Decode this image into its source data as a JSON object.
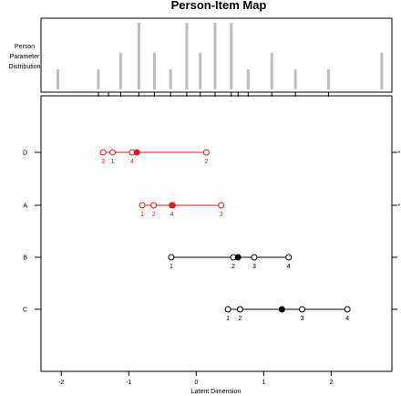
{
  "chart_data": {
    "type": "scatter",
    "title": "Person-Item Map",
    "xlabel": "Latent Dimension",
    "top_panel_label": [
      "Person",
      "Parameter",
      "Distribution"
    ],
    "xlim": [
      -2.3,
      2.9
    ],
    "x_ticks": [
      -2,
      -1,
      0,
      1,
      2
    ],
    "person_distribution": {
      "x": [
        -2.05,
        -1.45,
        -1.12,
        -0.85,
        -0.62,
        -0.38,
        -0.14,
        0.06,
        0.28,
        0.52,
        0.77,
        1.12,
        1.47,
        1.96,
        2.75
      ],
      "height": [
        0.3,
        0.3,
        0.55,
        1.0,
        0.55,
        0.3,
        1.0,
        0.55,
        1.0,
        1.0,
        0.3,
        0.55,
        0.3,
        0.3,
        0.55
      ]
    },
    "person_tick_marks": [
      -1.45,
      -1.3,
      -1.12,
      -0.85,
      -0.62,
      -0.38,
      -0.14,
      0.06,
      0.28,
      0.52,
      0.62,
      0.77,
      1.12,
      1.47,
      1.96
    ],
    "items": [
      {
        "label": "D",
        "color": "#e31a1c",
        "location": -0.88,
        "thresholds": [
          {
            "x": -1.38,
            "label": "3"
          },
          {
            "x": -1.24,
            "label": "1"
          },
          {
            "x": -0.95,
            "label": "4"
          },
          {
            "x": 0.15,
            "label": "2"
          }
        ],
        "misfit_marker": "*"
      },
      {
        "label": "A",
        "color": "#e31a1c",
        "location": -0.35,
        "thresholds": [
          {
            "x": -0.8,
            "label": "1"
          },
          {
            "x": -0.63,
            "label": "2"
          },
          {
            "x": -0.36,
            "label": "4"
          },
          {
            "x": 0.37,
            "label": "3"
          }
        ],
        "misfit_marker": "*"
      },
      {
        "label": "B",
        "color": "#000000",
        "location": 0.62,
        "thresholds": [
          {
            "x": -0.37,
            "label": "1"
          },
          {
            "x": 0.55,
            "label": "2"
          },
          {
            "x": 0.86,
            "label": "3"
          },
          {
            "x": 1.37,
            "label": "4"
          }
        ],
        "misfit_marker": ""
      },
      {
        "label": "C",
        "color": "#000000",
        "location": 1.27,
        "thresholds": [
          {
            "x": 0.47,
            "label": "1"
          },
          {
            "x": 0.65,
            "label": "2"
          },
          {
            "x": 1.57,
            "label": "3"
          },
          {
            "x": 2.24,
            "label": "4"
          }
        ],
        "misfit_marker": ""
      }
    ]
  }
}
